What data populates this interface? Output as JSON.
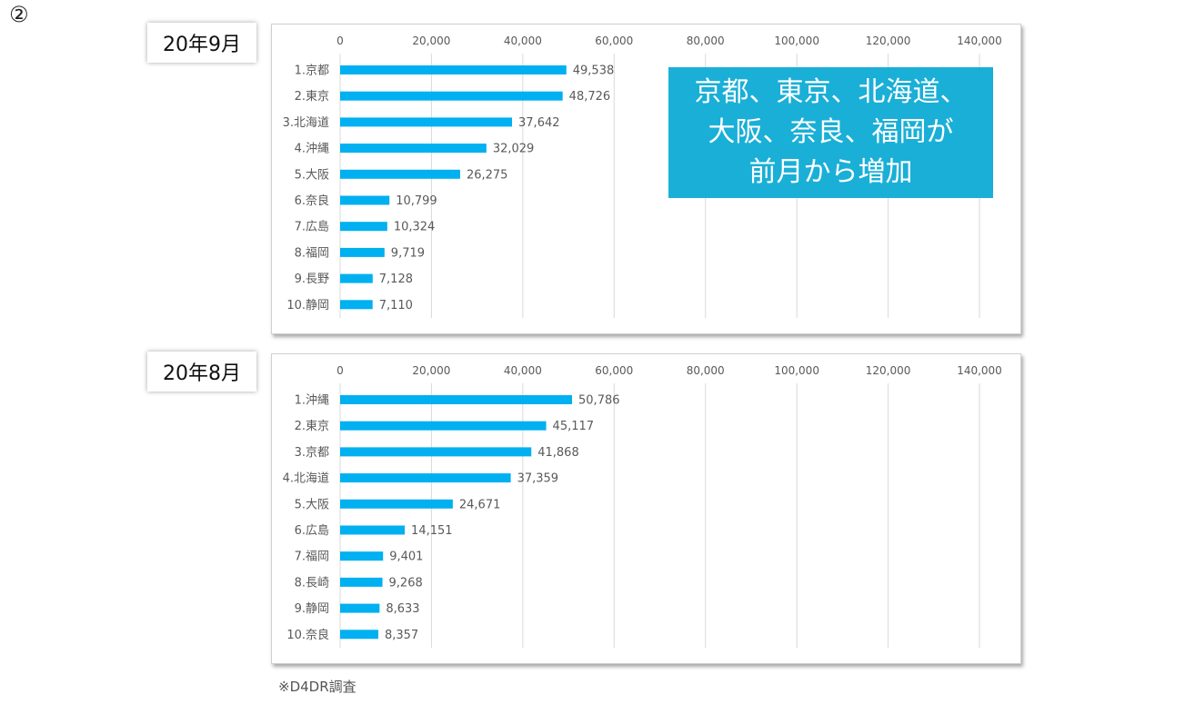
{
  "marker": "②",
  "callout": {
    "lines": [
      "京都、東京、北海道、",
      "大阪、奈良、福岡が",
      "前月から増加"
    ]
  },
  "source_note": "※D4DR調査",
  "colors": {
    "bar": "#00b0f0",
    "callout_bg": "#1aafd7",
    "grid": "#d9d9d9",
    "text": "#595959"
  },
  "chart_data": [
    {
      "type": "bar",
      "orientation": "horizontal",
      "period_label": "20年9月",
      "categories": [
        "1.京都",
        "2.東京",
        "3.北海道",
        "4.沖縄",
        "5.大阪",
        "6.奈良",
        "7.広島",
        "8.福岡",
        "9.長野",
        "10.静岡"
      ],
      "values": [
        49538,
        48726,
        37642,
        32029,
        26275,
        10799,
        10324,
        9719,
        7128,
        7110
      ],
      "value_labels": [
        "49,538",
        "48,726",
        "37,642",
        "32,029",
        "26,275",
        "10,799",
        "10,324",
        "9,719",
        "7,128",
        "7,110"
      ],
      "xlim": [
        0,
        140000
      ],
      "xticks": [
        0,
        20000,
        40000,
        60000,
        80000,
        100000,
        120000,
        140000
      ],
      "xtick_labels": [
        "0",
        "20,000",
        "40,000",
        "60,000",
        "80,000",
        "100,000",
        "120,000",
        "140,000"
      ],
      "axis_position": "top",
      "grid": true
    },
    {
      "type": "bar",
      "orientation": "horizontal",
      "period_label": "20年8月",
      "categories": [
        "1.沖縄",
        "2.東京",
        "3.京都",
        "4.北海道",
        "5.大阪",
        "6.広島",
        "7.福岡",
        "8.長崎",
        "9.静岡",
        "10.奈良"
      ],
      "values": [
        50786,
        45117,
        41868,
        37359,
        24671,
        14151,
        9401,
        9268,
        8633,
        8357
      ],
      "value_labels": [
        "50,786",
        "45,117",
        "41,868",
        "37,359",
        "24,671",
        "14,151",
        "9,401",
        "9,268",
        "8,633",
        "8,357"
      ],
      "xlim": [
        0,
        140000
      ],
      "xticks": [
        0,
        20000,
        40000,
        60000,
        80000,
        100000,
        120000,
        140000
      ],
      "xtick_labels": [
        "0",
        "20,000",
        "40,000",
        "60,000",
        "80,000",
        "100,000",
        "120,000",
        "140,000"
      ],
      "axis_position": "top",
      "grid": true
    }
  ]
}
